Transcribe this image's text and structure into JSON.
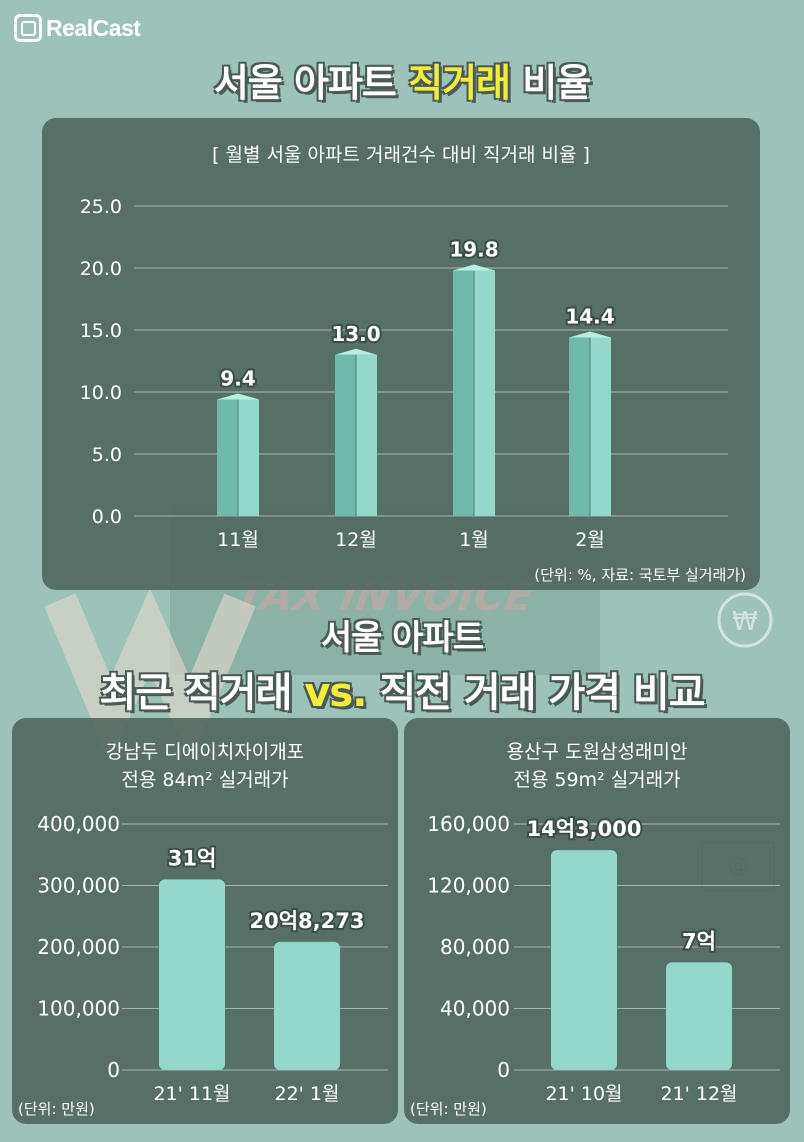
{
  "brand": {
    "logo_text": "RealCast"
  },
  "title": {
    "part1": "서울 아파트 ",
    "highlight": "직거래",
    "part2": " 비율"
  },
  "background": {
    "watermark": "TAX INVOICE"
  },
  "colors": {
    "bar": "#93d8c9",
    "bar_dark": "#6fbaa9",
    "panel": "#4c645c",
    "background": "#9cc2b9",
    "highlight": "#f4ec3a"
  },
  "top_chart": {
    "subtitle": "[ 월별 서울 아파트 거래건수 대비 직거래 비율 ]",
    "unit_note": "(단위: %, 자료: 국토부 실거래가)"
  },
  "compare": {
    "line1": "서울 아파트",
    "line2a": "최근 직거래 ",
    "vs": "vs.",
    "line2b": " 직전 거래 가격 비교"
  },
  "left_chart": {
    "subtitle_l1": "강남두 디에이치자이개포",
    "subtitle_l2": "전용 84m² 실거래가",
    "unit_note": "(단위: 만원)"
  },
  "right_chart": {
    "subtitle_l1": "용산구 도원삼성래미안",
    "subtitle_l2": "전용 59m² 실거래가",
    "unit_note": "(단위: 만원)"
  },
  "chart_data": [
    {
      "type": "bar",
      "title": "[ 월별 서울 아파트 거래건수 대비 직거래 비율 ]",
      "categories": [
        "11월",
        "12월",
        "1월",
        "2월"
      ],
      "values": [
        9.4,
        13.0,
        19.8,
        14.4
      ],
      "data_labels": [
        "9.4",
        "13.0",
        "19.8",
        "14.4"
      ],
      "y_ticks": [
        "25.0",
        "20.0",
        "15.0",
        "10.0",
        "5.0",
        "0.0"
      ],
      "ylim": [
        0,
        25
      ],
      "grid": true
    },
    {
      "type": "bar",
      "title": "강남두 디에이치자이개포 전용 84m² 실거래가",
      "categories": [
        "21' 11월",
        "22' 1월"
      ],
      "values": [
        310000,
        208273
      ],
      "data_labels": [
        "31억",
        "20억8,273"
      ],
      "y_ticks": [
        "400,000",
        "300,000",
        "200,000",
        "100,000",
        "0"
      ],
      "ylim": [
        0,
        400000
      ],
      "grid": true
    },
    {
      "type": "bar",
      "title": "용산구 도원삼성래미안 전용 59m² 실거래가",
      "categories": [
        "21' 10월",
        "21' 12월"
      ],
      "values": [
        143000,
        70000
      ],
      "data_labels": [
        "14억3,000",
        "7억"
      ],
      "y_ticks": [
        "160,000",
        "120,000",
        "80,000",
        "40,000",
        "0"
      ],
      "ylim": [
        0,
        160000
      ],
      "grid": true
    }
  ]
}
